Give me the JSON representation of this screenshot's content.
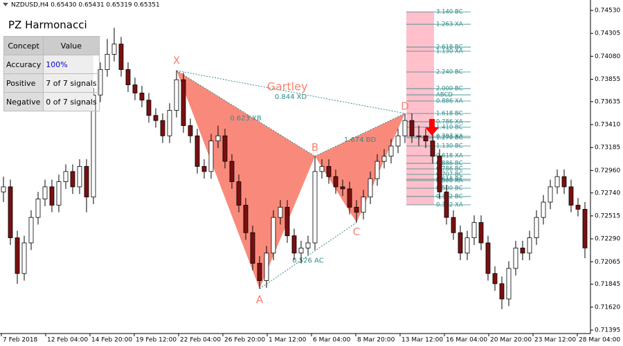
{
  "chart_data": {
    "type": "candlestick",
    "header": "NZDUSD,H4  0.65430 0.65431 0.65319 0.65351",
    "ylim": [
      0.71361,
      0.74632
    ],
    "yticks": [
      {
        "value": 0.7453,
        "label": "0.74530"
      },
      {
        "value": 0.74305,
        "label": "0.74305"
      },
      {
        "value": 0.7408,
        "label": "0.74080"
      },
      {
        "value": 0.73855,
        "label": "0.73855"
      },
      {
        "value": 0.73635,
        "label": "0.73635"
      },
      {
        "value": 0.7341,
        "label": "0.73410"
      },
      {
        "value": 0.73185,
        "label": "0.73185"
      },
      {
        "value": 0.7296,
        "label": "0.72960"
      },
      {
        "value": 0.7274,
        "label": "0.72740"
      },
      {
        "value": 0.72515,
        "label": "0.72515"
      },
      {
        "value": 0.7229,
        "label": "0.72290"
      },
      {
        "value": 0.72065,
        "label": "0.72065"
      },
      {
        "value": 0.71845,
        "label": "0.71845"
      },
      {
        "value": 0.7162,
        "label": "0.71620"
      },
      {
        "value": 0.71395,
        "label": "0.71395"
      }
    ],
    "x_labels": [
      "7 Feb 2018",
      "12 Feb 04:00",
      "14 Feb 20:00",
      "19 Feb 12:00",
      "22 Feb 04:00",
      "26 Feb 20:00",
      "1 Mar 12:00",
      "6 Mar 04:00",
      "8 Mar 20:00",
      "13 Mar 12:00",
      "16 Mar 04:00",
      "20 Mar 20:00",
      "23 Mar 12:00",
      "28 Mar 04:00"
    ],
    "colors": {
      "bull": "#ffffff",
      "bear": "#7a1010",
      "wick": "#000000",
      "pattern": "#f88070",
      "ratio": "#2e8b8b",
      "fib_box": "#ffc0cb"
    },
    "open": [
      0.7275,
      0.728,
      0.723,
      0.7195,
      0.7225,
      0.725,
      0.7268,
      0.728,
      0.7262,
      0.7285,
      0.7295,
      0.728,
      0.73,
      0.727,
      0.737,
      0.7395,
      0.741,
      0.742,
      0.7395,
      0.738,
      0.7372,
      0.7365,
      0.735,
      0.7345,
      0.733,
      0.7355,
      0.7385,
      0.734,
      0.733,
      0.73,
      0.7295,
      0.7325,
      0.733,
      0.7305,
      0.7285,
      0.7262,
      0.7235,
      0.7205,
      0.7188,
      0.7215,
      0.725,
      0.726,
      0.7232,
      0.7215,
      0.722,
      0.7225,
      0.7295,
      0.73,
      0.729,
      0.728,
      0.7278,
      0.726,
      0.7255,
      0.727,
      0.7288,
      0.7305,
      0.731,
      0.732,
      0.733,
      0.7345,
      0.733,
      0.733,
      0.7325,
      0.731,
      0.7275,
      0.725,
      0.7235,
      0.7215,
      0.723,
      0.7245,
      0.7225,
      0.7195,
      0.7185,
      0.717,
      0.72,
      0.722,
      0.7215,
      0.723,
      0.725,
      0.7265,
      0.728,
      0.729,
      0.728,
      0.7262,
      0.7258
    ],
    "high": [
      0.729,
      0.7287,
      0.7237,
      0.7232,
      0.7257,
      0.7275,
      0.7287,
      0.7287,
      0.7292,
      0.7302,
      0.7302,
      0.7307,
      0.7307,
      0.7377,
      0.7402,
      0.7425,
      0.7436,
      0.7427,
      0.7402,
      0.7387,
      0.7379,
      0.7372,
      0.7357,
      0.7352,
      0.7362,
      0.7394,
      0.7392,
      0.7347,
      0.7337,
      0.7307,
      0.7332,
      0.734,
      0.7337,
      0.7312,
      0.7292,
      0.7269,
      0.7242,
      0.7212,
      0.7222,
      0.7257,
      0.7267,
      0.7267,
      0.7239,
      0.7227,
      0.7232,
      0.731,
      0.7307,
      0.7307,
      0.7297,
      0.7287,
      0.7285,
      0.7267,
      0.7277,
      0.7295,
      0.7312,
      0.7317,
      0.7327,
      0.7337,
      0.7352,
      0.7352,
      0.734,
      0.7337,
      0.7332,
      0.7317,
      0.7282,
      0.7257,
      0.7242,
      0.7237,
      0.7252,
      0.7252,
      0.7232,
      0.7202,
      0.7192,
      0.7207,
      0.7227,
      0.7227,
      0.7237,
      0.7257,
      0.7272,
      0.7287,
      0.7297,
      0.7297,
      0.7287,
      0.7269,
      0.7265
    ],
    "low": [
      0.7265,
      0.7223,
      0.7185,
      0.7188,
      0.7218,
      0.7243,
      0.7261,
      0.7255,
      0.7255,
      0.7278,
      0.7273,
      0.7273,
      0.7255,
      0.7263,
      0.7363,
      0.7388,
      0.7403,
      0.7388,
      0.7373,
      0.7365,
      0.7358,
      0.7343,
      0.7338,
      0.7323,
      0.7323,
      0.7348,
      0.7333,
      0.7323,
      0.7293,
      0.7288,
      0.7288,
      0.7318,
      0.7298,
      0.7278,
      0.7255,
      0.7228,
      0.7198,
      0.718,
      0.7181,
      0.7208,
      0.7243,
      0.7225,
      0.7208,
      0.7205,
      0.7213,
      0.7218,
      0.7288,
      0.7283,
      0.7273,
      0.7271,
      0.7253,
      0.7245,
      0.7248,
      0.7263,
      0.7281,
      0.7298,
      0.7303,
      0.7313,
      0.7323,
      0.7323,
      0.732,
      0.7318,
      0.7303,
      0.7268,
      0.7243,
      0.7228,
      0.7208,
      0.7208,
      0.7223,
      0.7218,
      0.7188,
      0.7178,
      0.716,
      0.7163,
      0.7193,
      0.7208,
      0.7208,
      0.7223,
      0.7243,
      0.7258,
      0.7273,
      0.7273,
      0.7255,
      0.7251,
      0.721
    ],
    "close": [
      0.728,
      0.723,
      0.7195,
      0.7225,
      0.725,
      0.7268,
      0.728,
      0.7262,
      0.7285,
      0.7295,
      0.728,
      0.73,
      0.727,
      0.737,
      0.7395,
      0.741,
      0.742,
      0.7395,
      0.738,
      0.7372,
      0.7365,
      0.735,
      0.7345,
      0.733,
      0.7355,
      0.7385,
      0.734,
      0.733,
      0.73,
      0.7295,
      0.7325,
      0.733,
      0.7305,
      0.7285,
      0.7262,
      0.7235,
      0.7205,
      0.7188,
      0.7215,
      0.725,
      0.726,
      0.7232,
      0.7215,
      0.722,
      0.7225,
      0.7295,
      0.73,
      0.729,
      0.728,
      0.7278,
      0.726,
      0.7255,
      0.727,
      0.7288,
      0.7305,
      0.731,
      0.732,
      0.733,
      0.7345,
      0.733,
      0.733,
      0.7325,
      0.731,
      0.7275,
      0.725,
      0.7235,
      0.7215,
      0.723,
      0.7245,
      0.7225,
      0.7195,
      0.7185,
      0.717,
      0.72,
      0.722,
      0.7215,
      0.723,
      0.725,
      0.7265,
      0.728,
      0.729,
      0.728,
      0.7262,
      0.7258,
      0.722
    ],
    "pattern": {
      "name": "Gartley",
      "points": [
        {
          "label": "X",
          "candle": 25,
          "price": 0.7394
        },
        {
          "label": "A",
          "candle": 37,
          "price": 0.718
        },
        {
          "label": "B",
          "candle": 45,
          "price": 0.731
        },
        {
          "label": "C",
          "candle": 51,
          "price": 0.7245
        },
        {
          "label": "D",
          "candle": 58,
          "price": 0.7352
        }
      ],
      "ratios": [
        {
          "label": "0.623 XB",
          "from": 0,
          "to": 2
        },
        {
          "label": "1.674 BD",
          "from": 2,
          "to": 4
        },
        {
          "label": "0.844 XD",
          "from": 0,
          "to": 4
        },
        {
          "label": "0.526 AC",
          "from": 1,
          "to": 3
        }
      ]
    },
    "fib_levels": [
      {
        "label": "3.140 BC",
        "price": 0.74516
      },
      {
        "label": "1.263 XA",
        "price": 0.74394
      },
      {
        "label": "2.618 BC",
        "price": 0.7417
      },
      {
        "label": "1.130 XA",
        "price": 0.7413
      },
      {
        "label": "2.240 BC",
        "price": 0.73926
      },
      {
        "label": "2.000 BC",
        "price": 0.73763
      },
      {
        "label": "ABCD",
        "price": 0.73702
      },
      {
        "label": "0.886 XA",
        "price": 0.73641
      },
      {
        "label": "1.618 BC",
        "price": 0.73519
      },
      {
        "label": "0.786 XA",
        "price": 0.73438
      },
      {
        "label": "1.410 BC",
        "price": 0.73384
      },
      {
        "label": "0.707 XA",
        "price": 0.73295
      },
      {
        "label": "1.270 BC",
        "price": 0.73282
      },
      {
        "label": "1.130 BC",
        "price": 0.732
      },
      {
        "label": "0.618 XA",
        "price": 0.73105
      },
      {
        "label": "0.886 BC",
        "price": 0.7303
      },
      {
        "label": "0.786 BC",
        "price": 0.72976
      },
      {
        "label": "0.707 BC",
        "price": 0.72922
      },
      {
        "label": "0.618 BC",
        "price": 0.72874
      },
      {
        "label": "0.500 XA",
        "price": 0.72861
      },
      {
        "label": "0.500 BC",
        "price": 0.72786
      },
      {
        "label": "0.382 BC",
        "price": 0.72705
      },
      {
        "label": "0.382 XA",
        "price": 0.72623
      }
    ]
  },
  "panel": {
    "title": "PZ Harmonacci",
    "columns": [
      "Concept",
      "Value"
    ],
    "rows": [
      [
        "Accuracy",
        "100%"
      ],
      [
        "Positive",
        "7 of 7 signals"
      ],
      [
        "Negative",
        "0 of 7 signals"
      ]
    ]
  }
}
